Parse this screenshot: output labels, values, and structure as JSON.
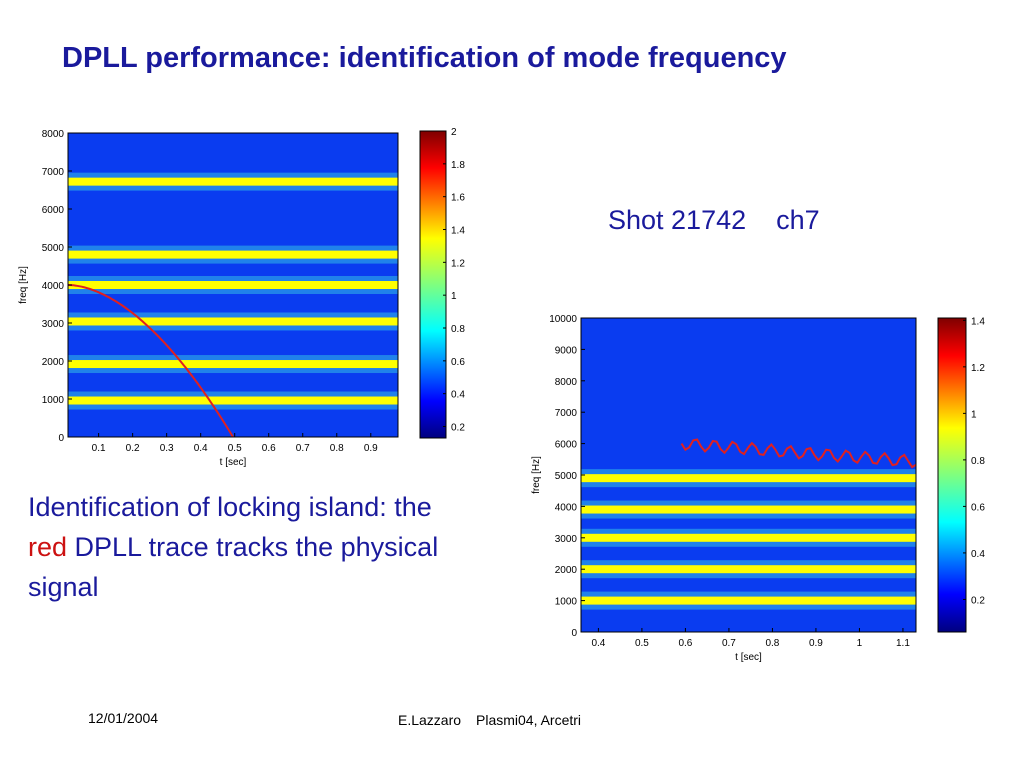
{
  "title": "DPLL performance: identification of mode frequency",
  "plots": [
    {
      "xlabel": "t [sec]",
      "ylabel": "freq [Hz]",
      "xlim": [
        0.01,
        0.98
      ],
      "xticks": [
        0.1,
        0.2,
        0.3,
        0.4,
        0.5,
        0.6,
        0.7,
        0.8,
        0.9
      ],
      "ylim": [
        0,
        8000
      ],
      "yticks": [
        0,
        1000,
        2000,
        3000,
        4000,
        5000,
        6000,
        7000,
        8000
      ],
      "clim": [
        0.13,
        2
      ],
      "cticks": [
        0.2,
        0.4,
        0.6,
        0.8,
        1,
        1.2,
        1.4,
        1.6,
        1.8,
        2
      ]
    },
    {
      "xlabel": "t [sec]",
      "ylabel": "freq [Hz]",
      "xlim": [
        0.36,
        1.13
      ],
      "xticks": [
        0.4,
        0.5,
        0.6,
        0.7,
        0.8,
        0.9,
        1,
        1.1
      ],
      "ylim": [
        0,
        10000
      ],
      "yticks": [
        0,
        1000,
        2000,
        3000,
        4000,
        5000,
        6000,
        7000,
        8000,
        9000,
        10000
      ],
      "clim": [
        0.06,
        1.41
      ],
      "cticks": [
        0.2,
        0.4,
        0.6,
        0.8,
        1,
        1.2,
        1.4
      ]
    }
  ],
  "shot": {
    "label": "Shot 21742",
    "channel": "ch7"
  },
  "caption": {
    "before": "Identification of locking island: the ",
    "highlight": "red",
    "after": " DPLL trace tracks the physical signal"
  },
  "footer": {
    "date": "12/01/2004",
    "author": "E.Lazzaro",
    "venue": "Plasmi04, Arcetri"
  }
}
